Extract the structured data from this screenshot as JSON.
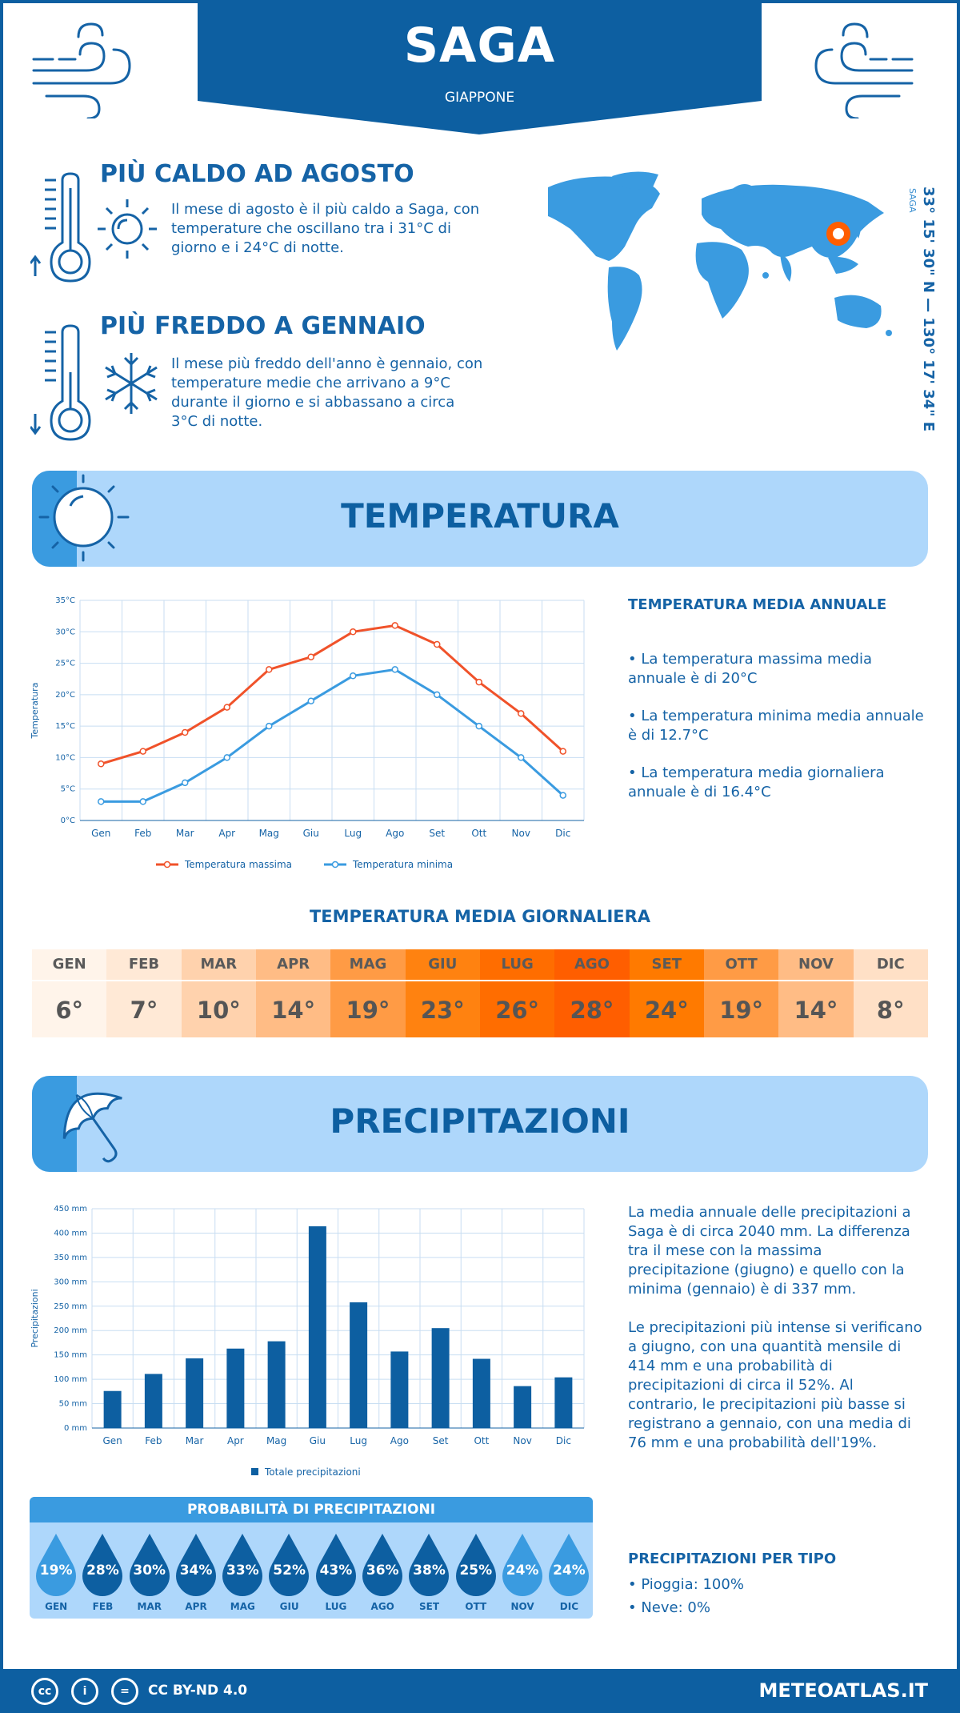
{
  "header": {
    "city": "SAGA",
    "country": "GIAPPONE"
  },
  "facts": {
    "hottest": {
      "title": "PIÙ CALDO AD AGOSTO",
      "text": "Il mese di agosto è il più caldo a Saga, con temperature che oscillano tra i 31°C di giorno e i 24°C di notte."
    },
    "coldest": {
      "title": "PIÙ FREDDO A GENNAIO",
      "text": "Il mese più freddo dell'anno è gennaio, con temperature medie che arrivano a 9°C durante il giorno e si abbassano a circa 3°C di notte."
    }
  },
  "map": {
    "coords": "33° 15' 30\" N — 130° 17' 34\" E",
    "city_label": "SAGA"
  },
  "temperature": {
    "section_title": "TEMPERATURA",
    "info_title": "TEMPERATURA MEDIA ANNUALE",
    "info": [
      "• La temperatura massima media annuale è di 20°C",
      "• La temperatura minima media annuale è di 12.7°C",
      "• La temperatura media giornaliera annuale è di 16.4°C"
    ],
    "daily_title": "TEMPERATURA MEDIA GIORNALIERA",
    "daily": [
      {
        "month": "GEN",
        "value": "6°",
        "bg": "#fff4ea"
      },
      {
        "month": "FEB",
        "value": "7°",
        "bg": "#ffe9d6"
      },
      {
        "month": "MAR",
        "value": "10°",
        "bg": "#ffd2ad"
      },
      {
        "month": "APR",
        "value": "14°",
        "bg": "#ffbc85"
      },
      {
        "month": "MAG",
        "value": "19°",
        "bg": "#ff9b45"
      },
      {
        "month": "GIU",
        "value": "23°",
        "bg": "#ff8210"
      },
      {
        "month": "LUG",
        "value": "26°",
        "bg": "#ff6d00"
      },
      {
        "month": "AGO",
        "value": "28°",
        "bg": "#ff5e00"
      },
      {
        "month": "SET",
        "value": "24°",
        "bg": "#ff7a00"
      },
      {
        "month": "OTT",
        "value": "19°",
        "bg": "#ff9b45"
      },
      {
        "month": "NOV",
        "value": "14°",
        "bg": "#ffbc85"
      },
      {
        "month": "DIC",
        "value": "8°",
        "bg": "#ffe0c6"
      }
    ]
  },
  "precipitation": {
    "section_title": "PRECIPITAZIONI",
    "text1": "La media annuale delle precipitazioni a Saga è di circa 2040 mm. La differenza tra il mese con la massima precipitazione (giugno) e quello con la minima (gennaio) è di 337 mm.",
    "text2": "Le precipitazioni più intense si verificano a giugno, con una quantità mensile di 414 mm e una probabilità di precipitazioni di circa il 52%. Al contrario, le precipitazioni più basse si registrano a gennaio, con una media di 76 mm e una probabilità dell'19%.",
    "prob_title": "PROBABILITÀ DI PRECIPITAZIONI",
    "prob": [
      {
        "month": "GEN",
        "pct": "19%",
        "color": "#3a9be0"
      },
      {
        "month": "FEB",
        "pct": "28%",
        "color": "#0d5fa1"
      },
      {
        "month": "MAR",
        "pct": "30%",
        "color": "#0d5fa1"
      },
      {
        "month": "APR",
        "pct": "34%",
        "color": "#0d5fa1"
      },
      {
        "month": "MAG",
        "pct": "33%",
        "color": "#0d5fa1"
      },
      {
        "month": "GIU",
        "pct": "52%",
        "color": "#0d5fa1"
      },
      {
        "month": "LUG",
        "pct": "43%",
        "color": "#0d5fa1"
      },
      {
        "month": "AGO",
        "pct": "36%",
        "color": "#0d5fa1"
      },
      {
        "month": "SET",
        "pct": "38%",
        "color": "#0d5fa1"
      },
      {
        "month": "OTT",
        "pct": "25%",
        "color": "#0d5fa1"
      },
      {
        "month": "NOV",
        "pct": "24%",
        "color": "#3a9be0"
      },
      {
        "month": "DIC",
        "pct": "24%",
        "color": "#3a9be0"
      }
    ],
    "type_title": "PRECIPITAZIONI PER TIPO",
    "types": [
      "• Pioggia: 100%",
      "• Neve: 0%"
    ]
  },
  "footer": {
    "license": "CC BY-ND 4.0",
    "site": "METEOATLAS.IT"
  },
  "colors": {
    "primary": "#0d5fa1",
    "light": "#aed7fb",
    "accent": "#3a9be0",
    "max": "#f0522a",
    "min": "#3a9be0"
  },
  "chart_data": [
    {
      "type": "line",
      "categories": [
        "Gen",
        "Feb",
        "Mar",
        "Apr",
        "Mag",
        "Giu",
        "Lug",
        "Ago",
        "Set",
        "Ott",
        "Nov",
        "Dic"
      ],
      "series": [
        {
          "name": "Temperatura massima",
          "values": [
            9,
            11,
            14,
            18,
            24,
            26,
            30,
            31,
            28,
            22,
            17,
            11
          ]
        },
        {
          "name": "Temperatura minima",
          "values": [
            3,
            3,
            6,
            10,
            15,
            19,
            23,
            24,
            20,
            15,
            10,
            4
          ]
        }
      ],
      "ylabel": "Temperatura",
      "ylim": [
        0,
        35
      ],
      "yticks": [
        "0°C",
        "5°C",
        "10°C",
        "15°C",
        "20°C",
        "25°C",
        "30°C",
        "35°C"
      ],
      "grid": true,
      "legend": "bottom"
    },
    {
      "type": "bar",
      "categories": [
        "Gen",
        "Feb",
        "Mar",
        "Apr",
        "Mag",
        "Giu",
        "Lug",
        "Ago",
        "Set",
        "Ott",
        "Nov",
        "Dic"
      ],
      "series": [
        {
          "name": "Totale precipitazioni",
          "values": [
            76,
            111,
            143,
            163,
            178,
            414,
            258,
            157,
            205,
            142,
            86,
            104
          ]
        }
      ],
      "ylabel": "Precipitazioni",
      "ylim": [
        0,
        450
      ],
      "yticks": [
        "0 mm",
        "50 mm",
        "100 mm",
        "150 mm",
        "200 mm",
        "250 mm",
        "300 mm",
        "350 mm",
        "400 mm",
        "450 mm"
      ],
      "grid": true,
      "legend": "bottom"
    }
  ]
}
